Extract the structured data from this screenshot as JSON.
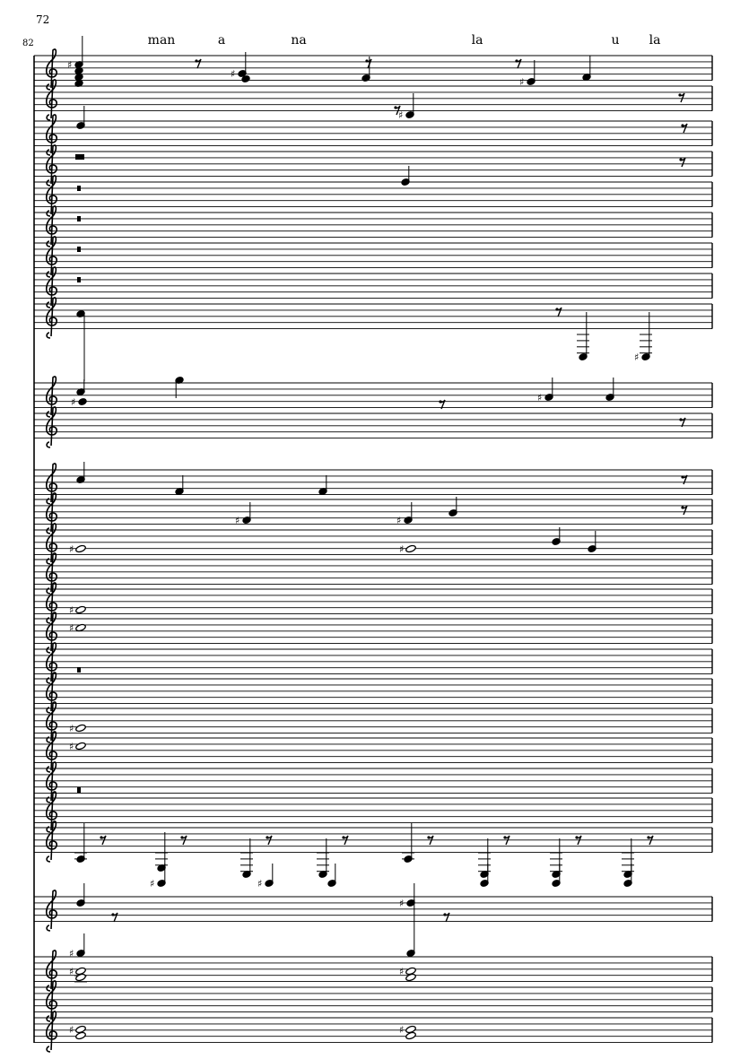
{
  "score": {
    "rehearsal_number": "72",
    "measure_number": "82",
    "lyrics": [
      "man",
      "a",
      "na",
      "la",
      "u",
      "la"
    ],
    "clef": "treble-clef-icon",
    "staff_color": "#000000"
  }
}
